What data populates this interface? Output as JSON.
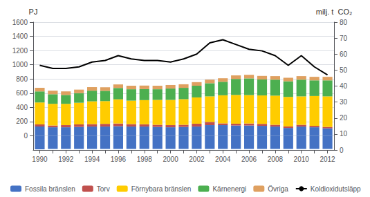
{
  "chart_data": {
    "type": "bar",
    "stacked": true,
    "categories": [
      "1990",
      null,
      "1992",
      null,
      "1994",
      null,
      "1996",
      null,
      "1998",
      null,
      "2000",
      null,
      "2002",
      null,
      "2004",
      null,
      "2006",
      null,
      "2008",
      null,
      "2010",
      null,
      "2012"
    ],
    "series": [
      {
        "color": "#4472C4",
        "values": [
          -190,
          -185,
          -185,
          -185,
          -185,
          -185,
          -185,
          -185,
          -185,
          -185,
          -185,
          -185,
          -185,
          -185,
          -185,
          -185,
          -185,
          -185,
          -185,
          -185,
          -185,
          -185,
          -185
        ]
      },
      {
        "name": "Fossila bränslen",
        "color": "#4472C4",
        "values": [
          130,
          120,
          120,
          125,
          130,
          130,
          135,
          130,
          130,
          125,
          120,
          125,
          130,
          150,
          150,
          145,
          145,
          140,
          130,
          110,
          130,
          120,
          105
        ]
      },
      {
        "name": "Torv",
        "color": "#C0504D",
        "values": [
          30,
          25,
          30,
          35,
          35,
          38,
          38,
          35,
          32,
          30,
          30,
          30,
          40,
          45,
          25,
          25,
          28,
          28,
          25,
          22,
          25,
          20,
          20
        ]
      },
      {
        "name": "Förnybara bränslen",
        "color": "#FFCC00",
        "values": [
          310,
          305,
          300,
          305,
          320,
          320,
          340,
          330,
          340,
          350,
          355,
          360,
          370,
          360,
          395,
          405,
          400,
          400,
          410,
          415,
          400,
          420,
          430
        ]
      },
      {
        "name": "Kärnenergi",
        "color": "#4CAF50",
        "values": [
          155,
          135,
          125,
          135,
          150,
          145,
          160,
          160,
          155,
          150,
          160,
          160,
          165,
          185,
          190,
          225,
          235,
          225,
          225,
          220,
          235,
          220,
          225
        ]
      },
      {
        "name": "Övriga",
        "color": "#DFA060",
        "values": [
          50,
          50,
          50,
          50,
          50,
          50,
          50,
          50,
          50,
          50,
          50,
          50,
          50,
          50,
          50,
          50,
          50,
          50,
          50,
          50,
          50,
          50,
          50
        ]
      },
      {
        "name": "Koldioxidutsläpp",
        "type": "line",
        "axis": "y2",
        "color": "#000000",
        "values": [
          53,
          51,
          51,
          52,
          55,
          56,
          59,
          57,
          56,
          56,
          55,
          57,
          60,
          67,
          69,
          66,
          63,
          62,
          59,
          53,
          59,
          52,
          47
        ]
      }
    ],
    "ylabel": "PJ",
    "y2label": "milj. t  CO₂",
    "ylim": [
      -200,
      1600
    ],
    "yticks": [
      0,
      200,
      400,
      600,
      800,
      1000,
      1200,
      1400,
      1600
    ],
    "y2lim": [
      0,
      80
    ],
    "y2ticks": [
      0,
      10,
      20,
      30,
      40,
      50,
      60,
      70,
      80
    ],
    "grid": true,
    "legend": "lower left"
  }
}
